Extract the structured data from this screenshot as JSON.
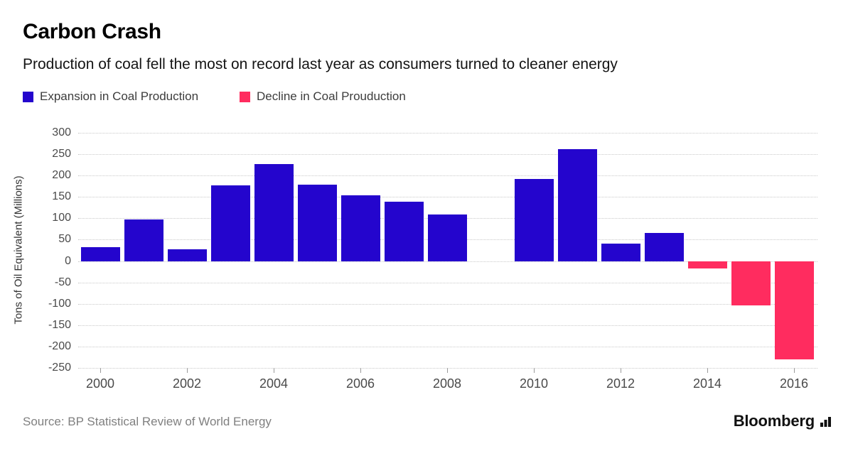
{
  "header": {
    "title": "Carbon Crash",
    "subtitle": "Production of coal fell the most on record last year as consumers turned to cleaner energy"
  },
  "legend": [
    {
      "label": "Expansion in Coal Production",
      "color": "#2405cd"
    },
    {
      "label": "Decline in Coal Prouduction",
      "color": "#ff2c5f"
    }
  ],
  "chart_data": {
    "type": "bar",
    "title": "Carbon Crash",
    "subtitle": "Production of coal fell the most on record last year as consumers turned to cleaner energy",
    "x": [
      2000,
      2001,
      2002,
      2003,
      2004,
      2005,
      2006,
      2007,
      2008,
      2009,
      2010,
      2011,
      2012,
      2013,
      2014,
      2015,
      2016
    ],
    "values": [
      32,
      97,
      28,
      177,
      227,
      179,
      154,
      138,
      109,
      0,
      192,
      262,
      40,
      66,
      -17,
      -104,
      -230
    ],
    "positive_color": "#2405cd",
    "negative_color": "#ff2c5f",
    "positive_label": "Expansion in Coal Production",
    "negative_label": "Decline in Coal Prouduction",
    "xlabel": "",
    "ylabel": "Tons of Oil Equivalent (Millions)",
    "ylim": [
      -250,
      300
    ],
    "yticks": [
      300,
      250,
      200,
      150,
      100,
      50,
      0,
      -50,
      -100,
      -150,
      -200,
      -250
    ],
    "xticks": [
      2000,
      2002,
      2004,
      2006,
      2008,
      2010,
      2012,
      2014,
      2016
    ],
    "legend_position": "top-left",
    "grid": "horizontal-dotted"
  },
  "footer": {
    "source": "Source: BP Statistical Review of World Energy",
    "brand": "Bloomberg"
  }
}
